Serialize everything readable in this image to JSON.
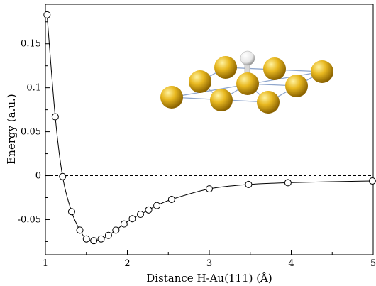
{
  "chart_data": {
    "type": "line",
    "xlabel": "Distance H-Au(111) (Å)",
    "ylabel": "Energy (a.u.)",
    "xlim": [
      1,
      5
    ],
    "ylim": [
      -0.09,
      0.195
    ],
    "x_ticks": [
      {
        "value": 1,
        "label": "1"
      },
      {
        "value": 2,
        "label": "2"
      },
      {
        "value": 3,
        "label": "3"
      },
      {
        "value": 4,
        "label": "4"
      },
      {
        "value": 5,
        "label": "5"
      }
    ],
    "y_ticks": [
      {
        "value": -0.05,
        "label": "-0.05"
      },
      {
        "value": 0,
        "label": "0"
      },
      {
        "value": 0.05,
        "label": "0.05"
      },
      {
        "value": 0.1,
        "label": "0.1"
      },
      {
        "value": 0.15,
        "label": "0.15"
      }
    ],
    "reference_line": {
      "y": 0,
      "style": "dashed"
    },
    "grid": false,
    "series": [
      {
        "marker": "open-circle",
        "line": "smooth",
        "color": "#000000",
        "x": [
          1.02,
          1.12,
          1.21,
          1.32,
          1.42,
          1.5,
          1.59,
          1.68,
          1.77,
          1.86,
          1.96,
          2.06,
          2.16,
          2.26,
          2.36,
          2.54,
          3.0,
          3.48,
          3.96,
          4.99
        ],
        "y": [
          0.183,
          0.067,
          -0.001,
          -0.041,
          -0.062,
          -0.072,
          -0.074,
          -0.072,
          -0.068,
          -0.062,
          -0.055,
          -0.049,
          -0.044,
          -0.039,
          -0.034,
          -0.027,
          -0.015,
          -0.01,
          -0.008,
          -0.006
        ]
      }
    ]
  },
  "inset": {
    "description_icon": "hydrogen-on-gold-surface-icon",
    "gold_color": "#e8b820",
    "hydrogen_color": "#ffffff",
    "bond_color": "#8fa6cc"
  }
}
